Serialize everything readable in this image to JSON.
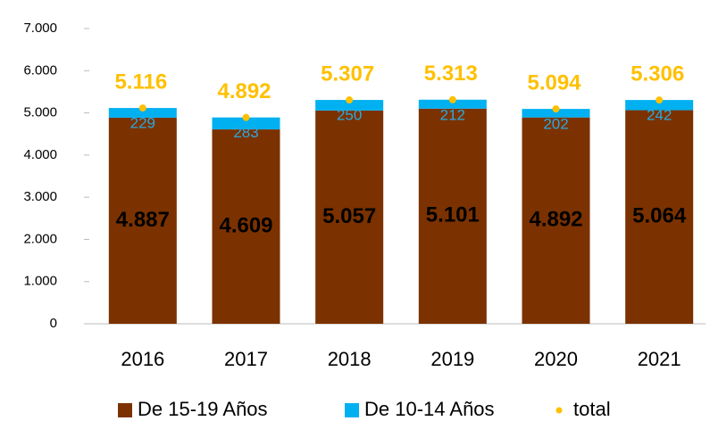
{
  "chart_data": {
    "type": "bar",
    "stacked": true,
    "categories": [
      "2016",
      "2017",
      "2018",
      "2019",
      "2020",
      "2021"
    ],
    "series": [
      {
        "name": "De 15-19 Años",
        "color": "#7b3200",
        "values": [
          4887,
          4609,
          5057,
          5101,
          4892,
          5064
        ],
        "value_labels": [
          "4.887",
          "4.609",
          "5.057",
          "5.101",
          "4.892",
          "5.064"
        ]
      },
      {
        "name": "De 10-14 Años",
        "color": "#00b0f0",
        "values": [
          229,
          283,
          250,
          212,
          202,
          242
        ]
      },
      {
        "name": "total",
        "color": "#ffc000",
        "style": "marker",
        "values": [
          5116,
          4892,
          5307,
          5313,
          5094,
          5306
        ],
        "value_labels": [
          "5.116",
          "4.892",
          "5.307",
          "5.313",
          "5.094",
          "5.306"
        ]
      }
    ],
    "ylim": [
      0,
      7000
    ],
    "yticks": [
      0,
      {
        "value": 1000,
        "label": "1.000"
      },
      {
        "value": 2000,
        "label": "2.000"
      },
      {
        "value": 3000,
        "label": "3.000"
      },
      {
        "value": 4000,
        "label": "4.000"
      },
      {
        "value": 5000,
        "label": "5.000"
      },
      {
        "value": 6000,
        "label": "6.000"
      },
      {
        "value": 7000,
        "label": "7.000"
      }
    ],
    "grid": false,
    "legend": "bottom"
  }
}
